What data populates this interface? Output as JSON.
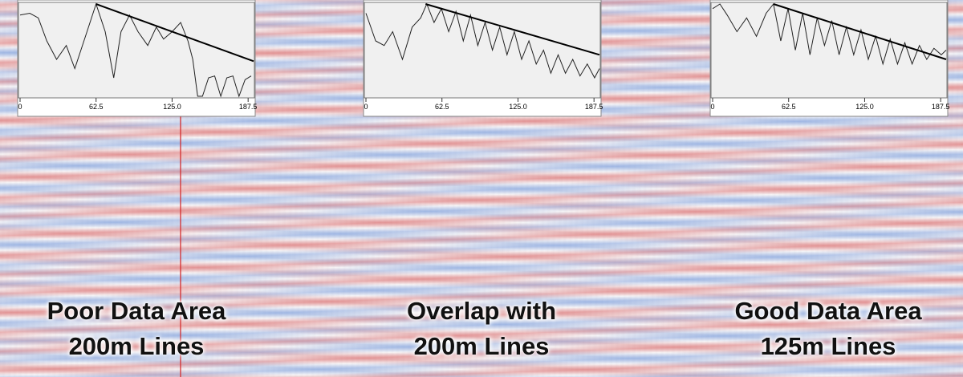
{
  "chart_data": [
    {
      "type": "line",
      "xlim": [
        0,
        192
      ],
      "ylim": [
        0,
        100
      ],
      "xticks": [
        0,
        62.5,
        {
          "value": 125,
          "label": "125.0"
        },
        187.5
      ],
      "series": [
        {
          "color": "#222222",
          "x": [
            0,
            8,
            15,
            22,
            30,
            38,
            45,
            55,
            62.5,
            70,
            77,
            83,
            90,
            97,
            105,
            112,
            118,
            125,
            132,
            138,
            142,
            146,
            150,
            155,
            160,
            165,
            170,
            175,
            180,
            185,
            190
          ],
          "values": [
            88,
            90,
            85,
            60,
            40,
            55,
            30,
            70,
            100,
            70,
            20,
            70,
            88,
            70,
            55,
            75,
            62,
            70,
            80,
            60,
            40,
            0,
            0,
            20,
            22,
            0,
            20,
            22,
            0,
            18,
            22
          ]
        },
        {
          "color": "#000000",
          "x": [
            62.5,
            192
          ],
          "values": [
            100,
            38
          ]
        }
      ]
    },
    {
      "type": "line",
      "xlim": [
        0,
        192
      ],
      "ylim": [
        0,
        100
      ],
      "xticks": [
        0,
        62.5,
        {
          "value": 125,
          "label": "125.0"
        },
        187.5
      ],
      "series": [
        {
          "color": "#222222",
          "x": [
            0,
            8,
            15,
            22,
            30,
            38,
            45,
            50,
            56,
            62,
            68,
            74,
            80,
            86,
            92,
            98,
            104,
            110,
            116,
            122,
            128,
            134,
            140,
            146,
            152,
            158,
            164,
            170,
            176,
            182,
            188,
            192
          ],
          "values": [
            90,
            60,
            55,
            70,
            40,
            75,
            85,
            100,
            80,
            95,
            70,
            92,
            60,
            88,
            55,
            80,
            50,
            75,
            45,
            70,
            40,
            60,
            35,
            50,
            25,
            45,
            25,
            40,
            22,
            35,
            20,
            30
          ]
        },
        {
          "color": "#000000",
          "x": [
            49,
            192
          ],
          "values": [
            100,
            45
          ]
        }
      ]
    },
    {
      "type": "line",
      "xlim": [
        0,
        192
      ],
      "ylim": [
        0,
        100
      ],
      "xticks": [
        0,
        62.5,
        {
          "value": 125,
          "label": "125.0"
        },
        187.5
      ],
      "series": [
        {
          "color": "#222222",
          "x": [
            0,
            6,
            12,
            20,
            28,
            36,
            44,
            50,
            56,
            62,
            68,
            74,
            80,
            86,
            92,
            98,
            104,
            110,
            116,
            122,
            128,
            134,
            140,
            146,
            152,
            158,
            164,
            170,
            176,
            182,
            188,
            192
          ],
          "values": [
            95,
            100,
            88,
            70,
            85,
            65,
            90,
            100,
            60,
            95,
            50,
            90,
            45,
            85,
            55,
            82,
            45,
            75,
            45,
            72,
            40,
            65,
            35,
            62,
            35,
            58,
            35,
            55,
            40,
            52,
            45,
            50
          ]
        },
        {
          "color": "#000000",
          "x": [
            50,
            192
          ],
          "values": [
            100,
            40
          ]
        }
      ]
    }
  ],
  "captions": [
    {
      "lines": [
        "Poor Data Area",
        "200m Lines"
      ]
    },
    {
      "lines": [
        "Overlap with",
        "200m Lines"
      ]
    },
    {
      "lines": [
        "Good Data Area",
        "125m Lines"
      ]
    }
  ]
}
